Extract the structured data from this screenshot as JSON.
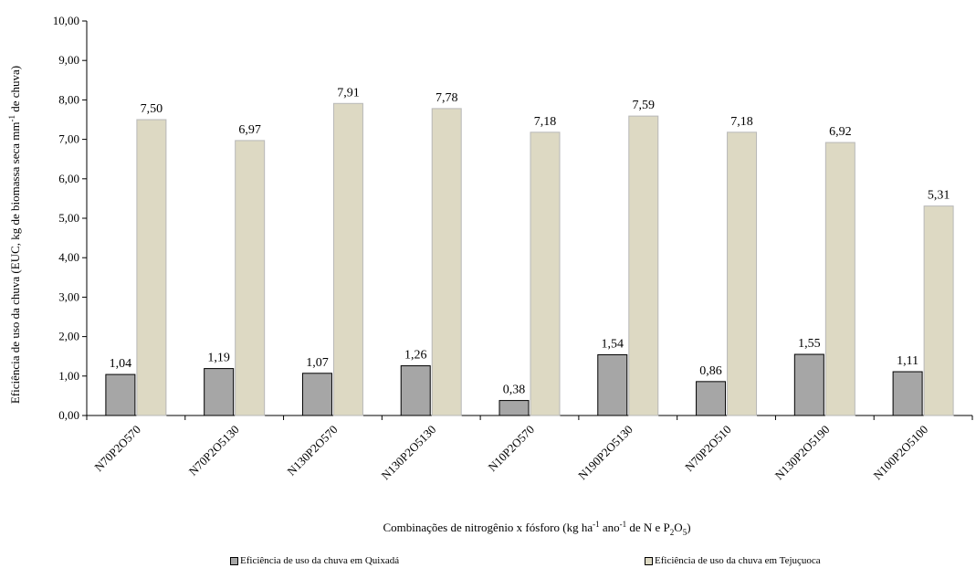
{
  "chart_data": {
    "type": "bar",
    "ylabel_main": "Eficiência de uso da chuva (EUC, kg de biomassa seca  mm",
    "ylabel_sup": "-1",
    "ylabel_end": " de chuva)",
    "xlabel_parts": [
      "Combinações de nitrogênio x fósforo (kg ha",
      "-1",
      " ano",
      "-1",
      " de N e P",
      "2",
      "O",
      "5",
      ")"
    ],
    "ylim": [
      0,
      10
    ],
    "yticks": [
      "0,00",
      "1,00",
      "2,00",
      "3,00",
      "4,00",
      "5,00",
      "6,00",
      "7,00",
      "8,00",
      "9,00",
      "10,00"
    ],
    "categories": [
      "N70P2O570",
      "N70P2O5130",
      "N130P2O570",
      "N130P2O5130",
      "N10P2O570",
      "N190P2O5130",
      "N70P2O510",
      "N130P2O5190",
      "N100P2O5100"
    ],
    "series": [
      {
        "name": "Eficiência de uso da chuva em Quixadá",
        "color": "#a6a6a6",
        "values": [
          1.04,
          1.19,
          1.07,
          1.26,
          0.38,
          1.54,
          0.86,
          1.55,
          1.11
        ],
        "labels": [
          "1,04",
          "1,19",
          "1,07",
          "1,26",
          "0,38",
          "1,54",
          "0,86",
          "1,55",
          "1,11"
        ]
      },
      {
        "name": "Eficiência de uso da chuva em Tejuçuoca",
        "color": "#ddd9c3",
        "values": [
          7.5,
          6.97,
          7.91,
          7.78,
          7.18,
          7.59,
          7.18,
          6.92,
          5.31
        ],
        "labels": [
          "7,50",
          "6,97",
          "7,91",
          "7,78",
          "7,18",
          "7,59",
          "7,18",
          "6,92",
          "5,31"
        ]
      }
    ],
    "grid": false,
    "legend_position": "bottom"
  }
}
